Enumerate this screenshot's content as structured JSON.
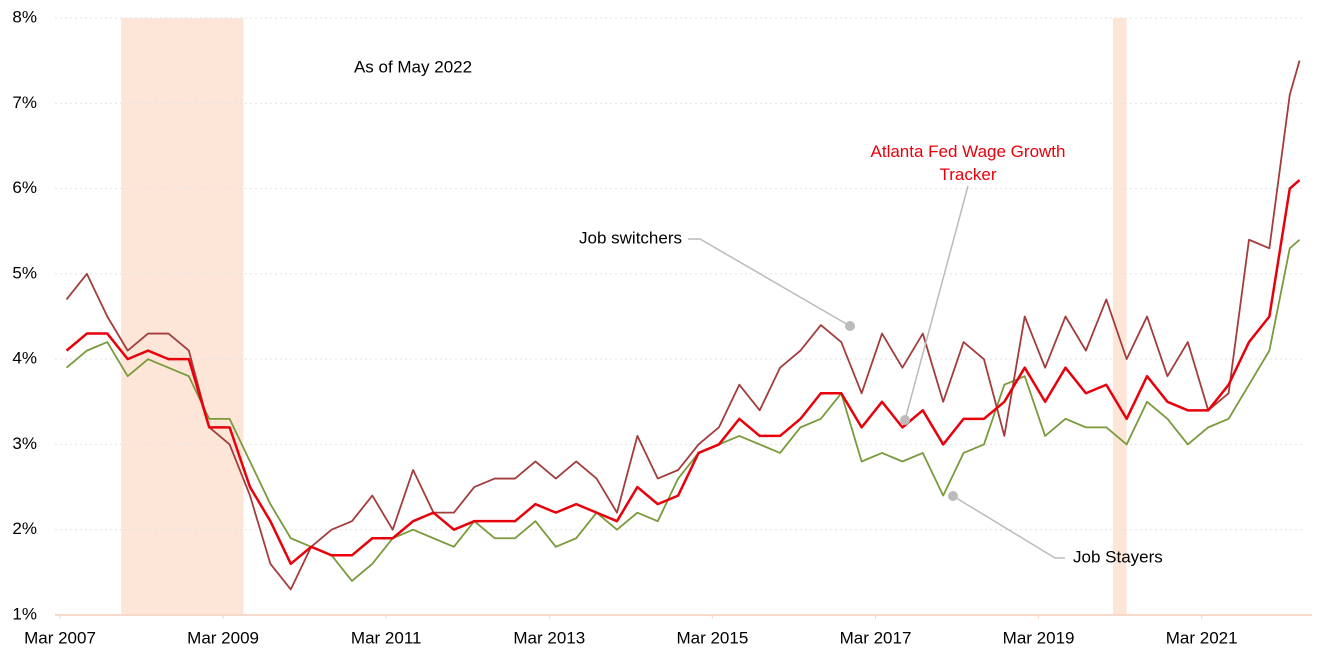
{
  "chart_data": {
    "type": "line",
    "annotation": "As of May 2022",
    "x": [
      2007.25,
      2007.5,
      2007.75,
      2008.0,
      2008.25,
      2008.5,
      2008.75,
      2009.0,
      2009.25,
      2009.5,
      2009.75,
      2010.0,
      2010.25,
      2010.5,
      2010.75,
      2011.0,
      2011.25,
      2011.5,
      2011.75,
      2012.0,
      2012.25,
      2012.5,
      2012.75,
      2013.0,
      2013.25,
      2013.5,
      2013.75,
      2014.0,
      2014.25,
      2014.5,
      2014.75,
      2015.0,
      2015.25,
      2015.5,
      2015.75,
      2016.0,
      2016.25,
      2016.5,
      2016.75,
      2017.0,
      2017.25,
      2017.5,
      2017.75,
      2018.0,
      2018.25,
      2018.5,
      2018.75,
      2019.0,
      2019.25,
      2019.5,
      2019.75,
      2020.0,
      2020.25,
      2020.5,
      2020.75,
      2021.0,
      2021.25,
      2021.5,
      2021.75,
      2022.0,
      2022.25,
      2022.37
    ],
    "series": [
      {
        "name": "Job switchers",
        "color": "#a33d3d",
        "values": [
          4.7,
          5.0,
          4.5,
          4.1,
          4.3,
          4.3,
          4.1,
          3.2,
          3.0,
          2.4,
          1.6,
          1.3,
          1.8,
          2.0,
          2.1,
          2.4,
          2.0,
          2.7,
          2.2,
          2.2,
          2.5,
          2.6,
          2.6,
          2.8,
          2.6,
          2.8,
          2.6,
          2.2,
          3.1,
          2.6,
          2.7,
          3.0,
          3.2,
          3.7,
          3.4,
          3.9,
          4.1,
          4.4,
          4.2,
          3.6,
          4.3,
          3.9,
          4.3,
          3.5,
          4.2,
          4.0,
          3.1,
          4.5,
          3.9,
          4.5,
          4.1,
          4.7,
          4.0,
          4.5,
          3.8,
          4.2,
          3.4,
          3.6,
          5.4,
          5.3,
          7.1,
          7.5
        ]
      },
      {
        "name": "Atlanta Fed Wage Growth Tracker",
        "color": "#e8000b",
        "values": [
          4.1,
          4.3,
          4.3,
          4.0,
          4.1,
          4.0,
          4.0,
          3.2,
          3.2,
          2.5,
          2.1,
          1.6,
          1.8,
          1.7,
          1.7,
          1.9,
          1.9,
          2.1,
          2.2,
          2.0,
          2.1,
          2.1,
          2.1,
          2.3,
          2.2,
          2.3,
          2.2,
          2.1,
          2.5,
          2.3,
          2.4,
          2.9,
          3.0,
          3.3,
          3.1,
          3.1,
          3.3,
          3.6,
          3.6,
          3.2,
          3.5,
          3.2,
          3.4,
          3.0,
          3.3,
          3.3,
          3.5,
          3.9,
          3.5,
          3.9,
          3.6,
          3.7,
          3.3,
          3.8,
          3.5,
          3.4,
          3.4,
          3.7,
          4.2,
          4.5,
          6.0,
          6.1
        ]
      },
      {
        "name": "Job Stayers",
        "color": "#7a9a3c",
        "values": [
          3.9,
          4.1,
          4.2,
          3.8,
          4.0,
          3.9,
          3.8,
          3.3,
          3.3,
          2.8,
          2.3,
          1.9,
          1.8,
          1.7,
          1.4,
          1.6,
          1.9,
          2.0,
          1.9,
          1.8,
          2.1,
          1.9,
          1.9,
          2.1,
          1.8,
          1.9,
          2.2,
          2.0,
          2.2,
          2.1,
          2.6,
          2.9,
          3.0,
          3.1,
          3.0,
          2.9,
          3.2,
          3.3,
          3.6,
          2.8,
          2.9,
          2.8,
          2.9,
          2.4,
          2.9,
          3.0,
          3.7,
          3.8,
          3.1,
          3.3,
          3.2,
          3.2,
          3.0,
          3.5,
          3.3,
          3.0,
          3.2,
          3.3,
          3.7,
          4.1,
          5.3,
          5.4
        ]
      }
    ],
    "recessions": [
      [
        2007.92,
        2009.42
      ],
      [
        2020.08,
        2020.25
      ]
    ],
    "recession_color": "#fde6d8",
    "xlim": [
      2007.17,
      2022.4
    ],
    "xticks": [
      {
        "value": 2007.17,
        "label": "Mar 2007"
      },
      {
        "value": 2009.17,
        "label": "Mar 2009"
      },
      {
        "value": 2011.17,
        "label": "Mar 2011"
      },
      {
        "value": 2013.17,
        "label": "Mar 2013"
      },
      {
        "value": 2015.17,
        "label": "Mar 2015"
      },
      {
        "value": 2017.17,
        "label": "Mar 2017"
      },
      {
        "value": 2019.17,
        "label": "Mar 2019"
      },
      {
        "value": 2021.17,
        "label": "Mar 2021"
      }
    ],
    "ylim": [
      1,
      8
    ],
    "yticks": [
      {
        "value": 1,
        "label": "1%"
      },
      {
        "value": 2,
        "label": "2%"
      },
      {
        "value": 3,
        "label": "3%"
      },
      {
        "value": 4,
        "label": "4%"
      },
      {
        "value": 5,
        "label": "5%"
      },
      {
        "value": 6,
        "label": "6%"
      },
      {
        "value": 7,
        "label": "7%"
      },
      {
        "value": 8,
        "label": "8%"
      }
    ],
    "grid": true
  }
}
